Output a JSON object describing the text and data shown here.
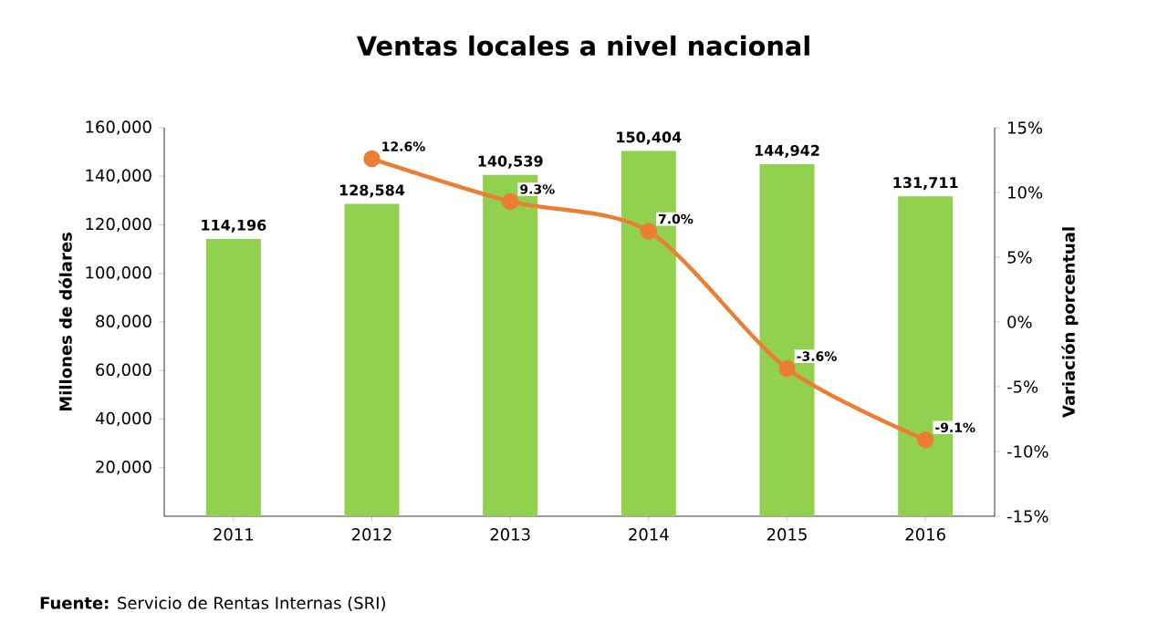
{
  "chart_data": {
    "type": "bar",
    "title": "Ventas locales a nivel nacional",
    "ylabel": "Millones de dólares",
    "y2label": "Variación porcentual",
    "categories": [
      "2011",
      "2012",
      "2013",
      "2014",
      "2015",
      "2016"
    ],
    "series": [
      {
        "color": "#92d050",
        "values": [
          114196,
          128584,
          140539,
          150404,
          144942,
          131711
        ],
        "value_labels": [
          "114,196",
          "128,584",
          "140,539",
          "150,404",
          "144,942",
          "131,711"
        ]
      },
      {
        "type": "line",
        "axis": "y2",
        "color": "#ed7d31",
        "marker": "circle",
        "values": [
          null,
          12.6,
          9.3,
          7.0,
          -3.6,
          -9.1
        ],
        "value_labels": [
          null,
          "12.6%",
          "9.3%",
          "7.0%",
          "-3.6%",
          "-9.1%"
        ]
      }
    ],
    "ylim": [
      0,
      160000
    ],
    "yticks": [
      {
        "value": 20000,
        "label": "20,000"
      },
      {
        "value": 40000,
        "label": "40,000"
      },
      {
        "value": 60000,
        "label": "60,000"
      },
      {
        "value": 80000,
        "label": "80,000"
      },
      {
        "value": 100000,
        "label": "100,000"
      },
      {
        "value": 120000,
        "label": "120,000"
      },
      {
        "value": 140000,
        "label": "140,000"
      },
      {
        "value": 160000,
        "label": "160,000"
      }
    ],
    "y2lim": [
      -15,
      15
    ],
    "y2ticks": [
      {
        "value": -15,
        "label": "-15%"
      },
      {
        "value": -10,
        "label": "-10%"
      },
      {
        "value": -5,
        "label": "-5%"
      },
      {
        "value": 0,
        "label": "0%"
      },
      {
        "value": 5,
        "label": "5%"
      },
      {
        "value": 10,
        "label": "10%"
      },
      {
        "value": 15,
        "label": "15%"
      }
    ],
    "annotations": [
      "**Fuente:** Servicio de Rentas Internas (SRI)"
    ]
  }
}
